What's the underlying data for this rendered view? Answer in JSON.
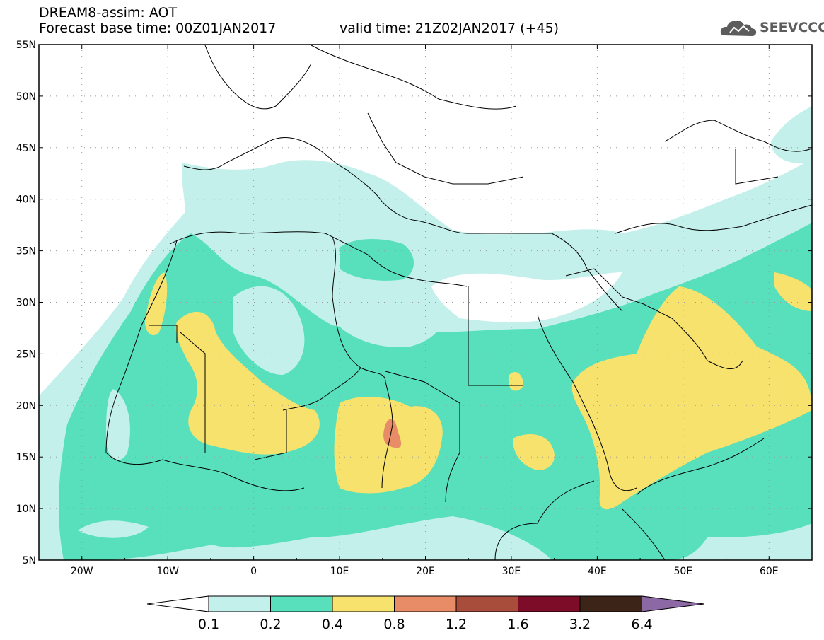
{
  "header": {
    "line1": "DREAM8-assim: AOT",
    "line2": "Forecast base time: 00Z01JAN2017",
    "valid": "valid time: 21Z02JAN2017 (+45)"
  },
  "logo": {
    "text": "SEEVCCC",
    "icon": "cloud-icon"
  },
  "map": {
    "lat_range": [
      5,
      55
    ],
    "lon_range": [
      -25,
      65
    ],
    "lat_labels": [
      "55N",
      "50N",
      "45N",
      "40N",
      "35N",
      "30N",
      "25N",
      "20N",
      "15N",
      "10N",
      "5N"
    ],
    "lon_labels": [
      "20W",
      "10W",
      "0",
      "10E",
      "20E",
      "30E",
      "40E",
      "50E",
      "60E"
    ]
  },
  "colorbar": {
    "colors": [
      "#ffffff",
      "#c4f0ec",
      "#58e0bc",
      "#f6e26c",
      "#e88c68",
      "#a84c3c",
      "#7c0c28",
      "#3c2418",
      "#8c68a4"
    ],
    "labels": [
      "0.1",
      "0.2",
      "0.4",
      "0.8",
      "1.2",
      "1.6",
      "3.2",
      "6.4"
    ]
  }
}
